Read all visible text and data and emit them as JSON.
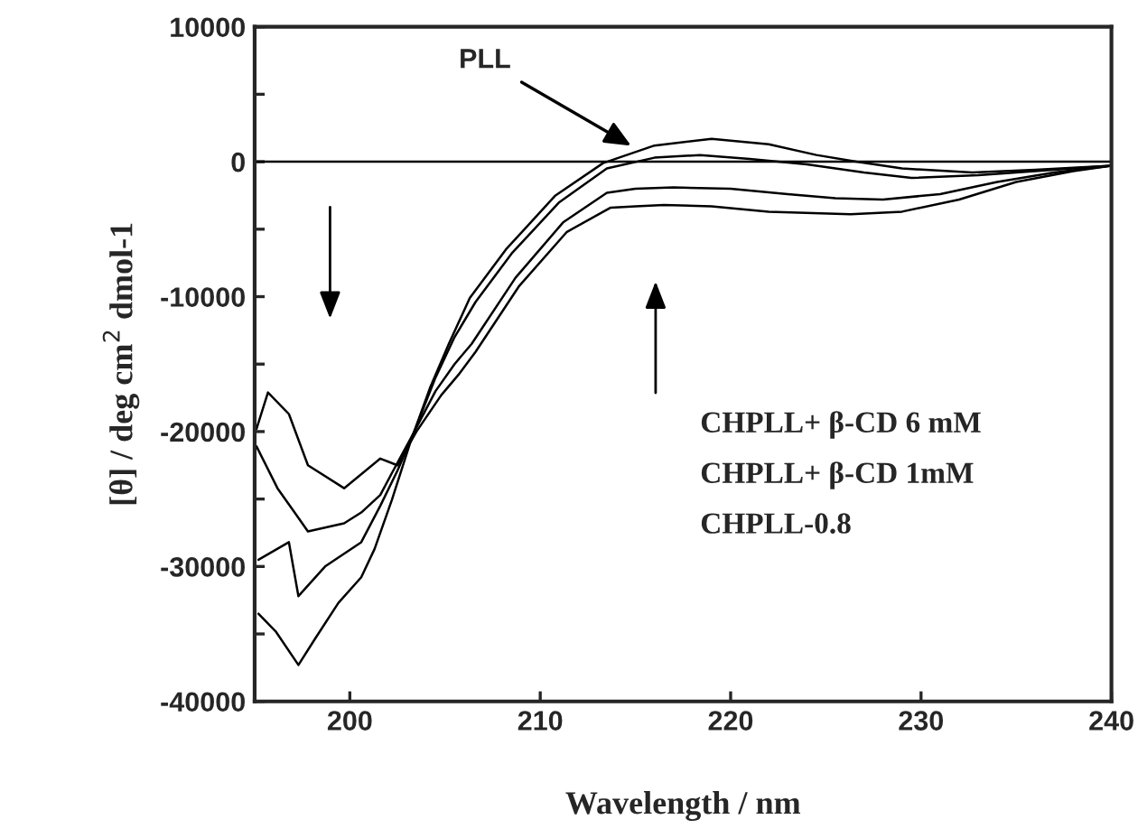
{
  "chart_data": {
    "type": "line",
    "xlabel": "Wavelength / nm",
    "ylabel": "[θ] / deg cm$^{2}$ dmol-1",
    "xlim": [
      195,
      240
    ],
    "ylim": [
      -40000,
      10000
    ],
    "xticks": [
      200,
      210,
      220,
      230,
      240
    ],
    "yticks": [
      -40000,
      {
        "value": -35000,
        "label": null
      },
      -30000,
      {
        "value": -25000,
        "label": null
      },
      -20000,
      {
        "value": -15000,
        "label": null
      },
      -10000,
      {
        "value": -5000,
        "label": null
      },
      0,
      {
        "value": 5000,
        "label": null
      },
      10000
    ],
    "grid": false,
    "marker": "none",
    "line_style": "solid",
    "ref_lines": [
      {
        "axis": "y",
        "value": 0,
        "color": "#000000"
      }
    ],
    "annotations": [
      {
        "text": "PLL",
        "x": 215,
        "y": 1000
      },
      "CHPLL+ β-CD 6 mM",
      "CHPLL+ β-CD 1mM",
      "CHPLL-0.8"
    ],
    "series": [
      {
        "color": "#000000",
        "x": [
          195.2,
          196.1,
          197.3,
          198.2,
          199.4,
          200.6,
          201.3,
          202.2,
          203.2,
          204.2,
          205.2,
          206.3,
          208.2,
          210.8,
          213.3,
          216,
          219,
          222,
          224.5,
          226.6,
          229,
          232.7,
          236,
          240
        ],
        "values": [
          -33500,
          -34800,
          -37300,
          -35300,
          -32700,
          -30800,
          -28700,
          -25100,
          -20700,
          -16800,
          -13500,
          -10100,
          -6500,
          -2500,
          -100,
          1200,
          1700,
          1300,
          500,
          0,
          -500,
          -800,
          -600,
          -300
        ]
      },
      {
        "color": "#000000",
        "x": [
          195.2,
          196.8,
          197.3,
          198.7,
          200.6,
          201.6,
          202.5,
          203.3,
          204.5,
          205.5,
          206.6,
          208.5,
          211,
          213.5,
          216,
          218.4,
          221,
          224,
          227,
          229.5,
          233,
          236,
          240
        ],
        "values": [
          -29500,
          -28200,
          -32200,
          -30000,
          -28200,
          -25500,
          -22900,
          -20300,
          -16000,
          -13000,
          -10400,
          -6800,
          -3000,
          -500,
          300,
          500,
          200,
          -200,
          -800,
          -1200,
          -1000,
          -700,
          -300
        ]
      },
      {
        "color": "#000000",
        "x": [
          195.1,
          196.2,
          197.1,
          197.8,
          199.7,
          200.6,
          201.6,
          202.2,
          203.2,
          204.5,
          205.5,
          206.4,
          208.7,
          211.2,
          213.5,
          215,
          217,
          220,
          223,
          225.5,
          228,
          231,
          234,
          237,
          240
        ],
        "values": [
          -21100,
          -24200,
          -26000,
          -27400,
          -26800,
          -26000,
          -24700,
          -23100,
          -20500,
          -17000,
          -15000,
          -13500,
          -8600,
          -4500,
          -2300,
          -2000,
          -1900,
          -2000,
          -2400,
          -2700,
          -2800,
          -2400,
          -1500,
          -800,
          -300
        ]
      },
      {
        "color": "#000000",
        "x": [
          195.1,
          195.7,
          196.8,
          197.8,
          199.7,
          201.6,
          202.5,
          203.5,
          204.8,
          205.7,
          206.6,
          208.9,
          211.4,
          213.7,
          215,
          216.5,
          219,
          222,
          226.3,
          229,
          232,
          235,
          238,
          240
        ],
        "values": [
          -19800,
          -17100,
          -18700,
          -22500,
          -24200,
          -22000,
          -22500,
          -20000,
          -17300,
          -15800,
          -14100,
          -9200,
          -5200,
          -3400,
          -3300,
          -3200,
          -3300,
          -3700,
          -3900,
          -3700,
          -2800,
          -1500,
          -700,
          -300
        ]
      }
    ]
  }
}
